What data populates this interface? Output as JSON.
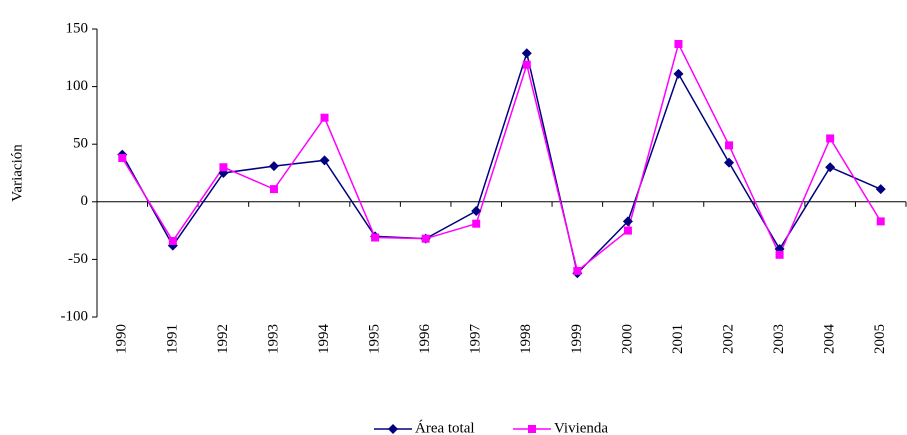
{
  "chart_data": {
    "type": "line",
    "y_label": "Variación",
    "categories": [
      "1990",
      "1991",
      "1992",
      "1993",
      "1994",
      "1995",
      "1996",
      "1997",
      "1998",
      "1999",
      "2000",
      "2001",
      "2002",
      "2003",
      "2004",
      "2005"
    ],
    "series": [
      {
        "name": "Área total",
        "color": "#000080",
        "marker": "diamond",
        "values": [
          41,
          -38,
          25,
          31,
          36,
          -30,
          -32,
          -8,
          129,
          -62,
          -17,
          111,
          34,
          -41,
          30,
          11
        ]
      },
      {
        "name": "Vivienda",
        "color": "#ff00ff",
        "marker": "square",
        "values": [
          38,
          -34,
          30,
          11,
          73,
          -31,
          -32,
          -19,
          119,
          -60,
          -25,
          137,
          49,
          -46,
          55,
          -17
        ]
      }
    ],
    "ylim": [
      -100,
      150
    ],
    "yticks": [
      -100,
      -50,
      0,
      50,
      100,
      150
    ],
    "grid": false,
    "legend": "bottom"
  }
}
